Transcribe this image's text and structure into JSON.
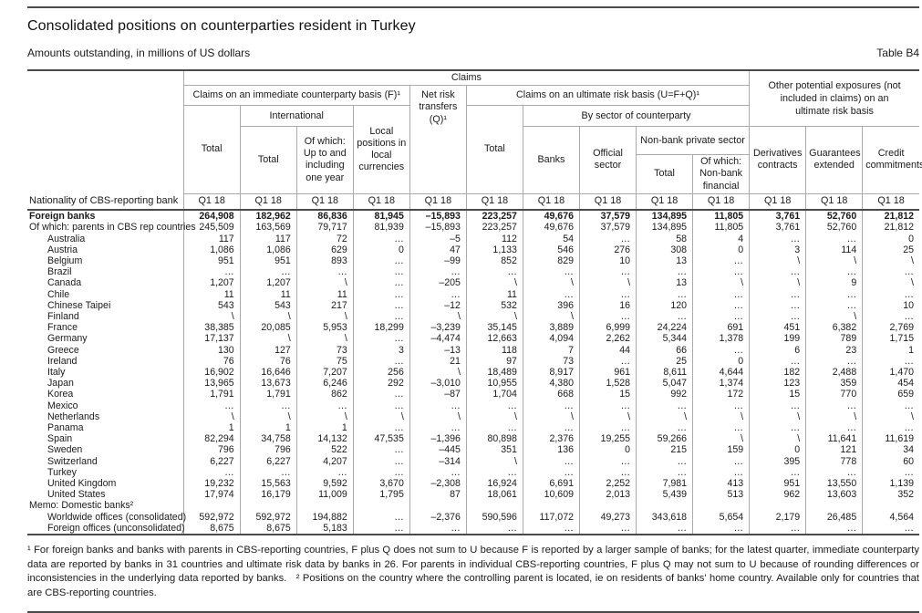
{
  "page": {
    "title": "Consolidated positions on counterparties resident in Turkey",
    "subtitle": "Amounts outstanding, in millions of US dollars",
    "table_label": "Table B4"
  },
  "colors": {
    "text": "#1a1a1a",
    "grid": "#ababab",
    "rule": "#4a4a4a"
  },
  "header": {
    "claims": "Claims",
    "other_exposures": "Other potential exposures (not included in claims) on an ultimate risk basis",
    "immediate": "Claims on an immediate counterparty basis (F)¹",
    "net_risk": "Net risk transfers (Q)¹",
    "ultimate": "Claims on an ultimate risk basis (U=F+Q)¹",
    "total_f": "Total",
    "international": "International",
    "intl_total": "Total",
    "intl_one_year": "Of which: Up to and including one year",
    "local_positions": "Local positions in local currencies",
    "total_u": "Total",
    "by_sector": "By sector of counterparty",
    "banks": "Banks",
    "official_sector": "Official sector",
    "nbps": "Non-bank private sector",
    "nbps_total": "Total",
    "nbps_financial": "Of which: Non-bank financial",
    "derivatives": "Derivatives contracts",
    "guarantees": "Guarantees extended",
    "credit": "Credit commitments",
    "row_label": "Nationality of CBS-reporting bank",
    "period": "Q1 18"
  },
  "rows": [
    {
      "label": "Foreign banks",
      "indent": 0,
      "bold": true,
      "values": [
        "264,908",
        "182,962",
        "86,836",
        "81,945",
        "–15,893",
        "223,257",
        "49,676",
        "37,579",
        "134,895",
        "11,805",
        "3,761",
        "52,760",
        "21,812"
      ]
    },
    {
      "label": "Of which: parents in CBS rep countries",
      "indent": 0,
      "bold": false,
      "values": [
        "245,509",
        "163,569",
        "79,717",
        "81,939",
        "–15,893",
        "223,257",
        "49,676",
        "37,579",
        "134,895",
        "11,805",
        "3,761",
        "52,760",
        "21,812"
      ]
    },
    {
      "label": "Australia",
      "indent": 1,
      "bold": false,
      "values": [
        "117",
        "117",
        "72",
        "…",
        "–5",
        "112",
        "54",
        "…",
        "58",
        "4",
        "…",
        "…",
        "0"
      ]
    },
    {
      "label": "Austria",
      "indent": 1,
      "bold": false,
      "values": [
        "1,086",
        "1,086",
        "629",
        "0",
        "47",
        "1,133",
        "546",
        "276",
        "308",
        "0",
        "3",
        "114",
        "25"
      ]
    },
    {
      "label": "Belgium",
      "indent": 1,
      "bold": false,
      "values": [
        "951",
        "951",
        "893",
        "…",
        "–99",
        "852",
        "829",
        "10",
        "13",
        "…",
        "\\",
        "\\",
        "\\"
      ]
    },
    {
      "label": "Brazil",
      "indent": 1,
      "bold": false,
      "values": [
        "…",
        "…",
        "…",
        "…",
        "…",
        "…",
        "…",
        "…",
        "…",
        "…",
        "…",
        "…",
        "…"
      ]
    },
    {
      "label": "Canada",
      "indent": 1,
      "bold": false,
      "values": [
        "1,207",
        "1,207",
        "\\",
        "…",
        "–205",
        "\\",
        "\\",
        "\\",
        "13",
        "\\",
        "\\",
        "9",
        "\\"
      ]
    },
    {
      "label": "Chile",
      "indent": 1,
      "bold": false,
      "values": [
        "11",
        "11",
        "11",
        "…",
        "…",
        "11",
        "…",
        "…",
        "…",
        "…",
        "…",
        "…",
        "…"
      ]
    },
    {
      "label": "Chinese Taipei",
      "indent": 1,
      "bold": false,
      "values": [
        "543",
        "543",
        "217",
        "…",
        "–12",
        "532",
        "396",
        "16",
        "120",
        "…",
        "…",
        "…",
        "10"
      ]
    },
    {
      "label": "Finland",
      "indent": 1,
      "bold": false,
      "values": [
        "\\",
        "\\",
        "\\",
        "…",
        "\\",
        "\\",
        "\\",
        "…",
        "…",
        "…",
        "…",
        "\\",
        "…"
      ]
    },
    {
      "label": "France",
      "indent": 1,
      "bold": false,
      "values": [
        "38,385",
        "20,085",
        "5,953",
        "18,299",
        "–3,239",
        "35,145",
        "3,889",
        "6,999",
        "24,224",
        "691",
        "451",
        "6,382",
        "2,769"
      ]
    },
    {
      "label": "Germany",
      "indent": 1,
      "bold": false,
      "values": [
        "17,137",
        "\\",
        "\\",
        "…",
        "–4,474",
        "12,663",
        "4,094",
        "2,262",
        "5,344",
        "1,378",
        "199",
        "789",
        "1,715"
      ]
    },
    {
      "label": "Greece",
      "indent": 1,
      "bold": false,
      "values": [
        "130",
        "127",
        "73",
        "3",
        "–13",
        "118",
        "7",
        "44",
        "66",
        "…",
        "6",
        "23",
        "1"
      ]
    },
    {
      "label": "Ireland",
      "indent": 1,
      "bold": false,
      "values": [
        "76",
        "76",
        "75",
        "…",
        "21",
        "97",
        "73",
        "…",
        "25",
        "0",
        "…",
        "…",
        "…"
      ]
    },
    {
      "label": "Italy",
      "indent": 1,
      "bold": false,
      "values": [
        "16,902",
        "16,646",
        "7,207",
        "256",
        "\\",
        "18,489",
        "8,917",
        "961",
        "8,611",
        "4,644",
        "182",
        "2,488",
        "1,470"
      ]
    },
    {
      "label": "Japan",
      "indent": 1,
      "bold": false,
      "values": [
        "13,965",
        "13,673",
        "6,246",
        "292",
        "–3,010",
        "10,955",
        "4,380",
        "1,528",
        "5,047",
        "1,374",
        "123",
        "359",
        "454"
      ]
    },
    {
      "label": "Korea",
      "indent": 1,
      "bold": false,
      "values": [
        "1,791",
        "1,791",
        "862",
        "…",
        "–87",
        "1,704",
        "668",
        "15",
        "992",
        "172",
        "15",
        "770",
        "659"
      ]
    },
    {
      "label": "Mexico",
      "indent": 1,
      "bold": false,
      "values": [
        "…",
        "…",
        "…",
        "…",
        "…",
        "…",
        "…",
        "…",
        "…",
        "…",
        "…",
        "…",
        "…"
      ]
    },
    {
      "label": "Netherlands",
      "indent": 1,
      "bold": false,
      "values": [
        "\\",
        "\\",
        "\\",
        "\\",
        "\\",
        "\\",
        "\\",
        "\\",
        "\\",
        "\\",
        "\\",
        "\\",
        "\\"
      ]
    },
    {
      "label": "Panama",
      "indent": 1,
      "bold": false,
      "values": [
        "1",
        "1",
        "1",
        "…",
        "…",
        "…",
        "…",
        "…",
        "…",
        "…",
        "…",
        "…",
        "…"
      ]
    },
    {
      "label": "Spain",
      "indent": 1,
      "bold": false,
      "values": [
        "82,294",
        "34,758",
        "14,132",
        "47,535",
        "–1,396",
        "80,898",
        "2,376",
        "19,255",
        "59,266",
        "\\",
        "\\",
        "11,641",
        "11,619"
      ]
    },
    {
      "label": "Sweden",
      "indent": 1,
      "bold": false,
      "values": [
        "796",
        "796",
        "522",
        "…",
        "–445",
        "351",
        "136",
        "0",
        "215",
        "159",
        "0",
        "121",
        "34"
      ]
    },
    {
      "label": "Switzerland",
      "indent": 1,
      "bold": false,
      "values": [
        "6,227",
        "6,227",
        "4,207",
        "…",
        "–314",
        "\\",
        "…",
        "…",
        "…",
        "…",
        "395",
        "778",
        "60"
      ]
    },
    {
      "label": "Turkey",
      "indent": 1,
      "bold": false,
      "values": [
        "…",
        "…",
        "…",
        "…",
        "…",
        "…",
        "…",
        "…",
        "…",
        "…",
        "…",
        "…",
        "…"
      ]
    },
    {
      "label": "United Kingdom",
      "indent": 1,
      "bold": false,
      "values": [
        "19,232",
        "15,563",
        "9,592",
        "3,670",
        "–2,308",
        "16,924",
        "6,691",
        "2,252",
        "7,981",
        "413",
        "951",
        "13,550",
        "1,139"
      ]
    },
    {
      "label": "United States",
      "indent": 1,
      "bold": false,
      "values": [
        "17,974",
        "16,179",
        "11,009",
        "1,795",
        "87",
        "18,061",
        "10,609",
        "2,013",
        "5,439",
        "513",
        "962",
        "13,603",
        "352"
      ]
    },
    {
      "label": "Memo: Domestic banks²",
      "indent": 0,
      "bold": false,
      "values": [
        "",
        "",
        "",
        "",
        "",
        "",
        "",
        "",
        "",
        "",
        "",
        "",
        ""
      ]
    },
    {
      "label": "Worldwide offices (consolidated)",
      "indent": 1,
      "bold": false,
      "values": [
        "592,972",
        "592,972",
        "194,882",
        "…",
        "–2,376",
        "590,596",
        "117,072",
        "49,273",
        "343,618",
        "5,654",
        "2,179",
        "26,485",
        "4,564"
      ]
    },
    {
      "label": "Foreign offices (unconsolidated)",
      "indent": 1,
      "bold": false,
      "values": [
        "8,675",
        "8,675",
        "5,183",
        "…",
        "…",
        "…",
        "…",
        "…",
        "…",
        "…",
        "…",
        "…",
        "…"
      ]
    }
  ],
  "footnotes": {
    "fn1": "¹  For foreign banks and banks with parents in CBS-reporting countries, F plus Q does not sum to U because F is reported by a larger sample of banks; for the latest quarter, immediate counterparty data are reported by banks in 31 countries and ultimate risk data by banks in 26. For parents in individual CBS-reporting countries, F plus Q may not sum to U because of rounding differences or inconsistencies in the underlying data reported by banks.",
    "fn2": "²  Positions on the country where the controlling parent is located, ie on residents of banks' home country. Available only for countries that are CBS-reporting countries."
  }
}
